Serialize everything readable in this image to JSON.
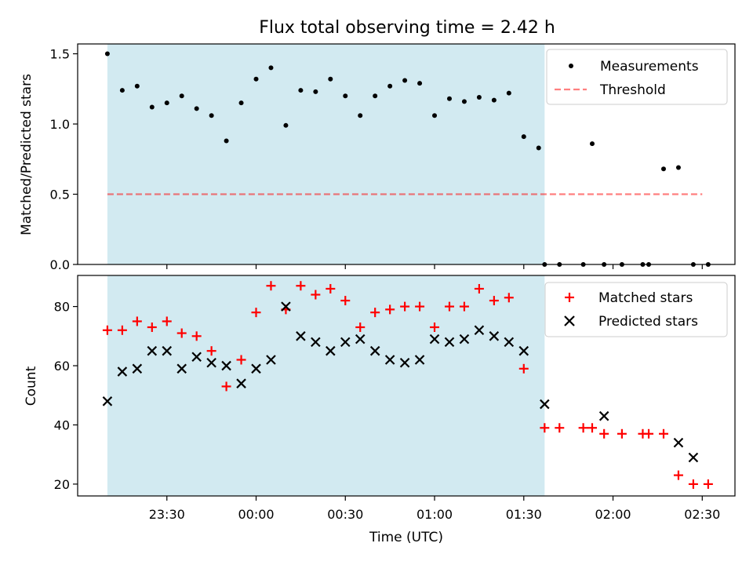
{
  "title": "Flux total observing time = 2.42 h",
  "colors": {
    "shade": "#add8e6",
    "measurement": "#000000",
    "threshold": "#ff0000",
    "matched": "#ff0000",
    "predicted": "#000000"
  },
  "chart_data": [
    {
      "type": "scatter",
      "ylabel": "Matched/Predicted stars",
      "xlabel": "",
      "x_ticks": [
        "23:30",
        "00:00",
        "00:30",
        "01:00",
        "01:30",
        "02:00",
        "02:30"
      ],
      "y_ticks": [
        "0.0",
        "0.5",
        "1.0",
        "1.5"
      ],
      "xlim": [
        "23:00",
        "02:41"
      ],
      "ylim": [
        0,
        1.57
      ],
      "grid": false,
      "legend_position": "top-right",
      "shaded_span": {
        "x": [
          "23:10",
          "01:37"
        ],
        "color": "#add8e6"
      },
      "series": [
        {
          "name": "Measurements",
          "marker": "dot",
          "x": [
            "23:10",
            "23:15",
            "23:20",
            "23:25",
            "23:30",
            "23:35",
            "23:40",
            "23:45",
            "23:50",
            "23:55",
            "00:00",
            "00:05",
            "00:10",
            "00:15",
            "00:20",
            "00:25",
            "00:30",
            "00:35",
            "00:40",
            "00:45",
            "00:50",
            "00:55",
            "01:00",
            "01:05",
            "01:10",
            "01:15",
            "01:20",
            "01:25",
            "01:30",
            "01:35",
            "01:37",
            "01:42",
            "01:50",
            "01:53",
            "01:57",
            "02:03",
            "02:10",
            "02:12",
            "02:17",
            "02:22",
            "02:27",
            "02:32"
          ],
          "y": [
            1.5,
            1.24,
            1.27,
            1.12,
            1.15,
            1.2,
            1.11,
            1.06,
            0.88,
            1.15,
            1.32,
            1.4,
            0.99,
            1.24,
            1.23,
            1.32,
            1.2,
            1.06,
            1.2,
            1.27,
            1.31,
            1.29,
            1.06,
            1.18,
            1.16,
            1.19,
            1.17,
            1.22,
            0.91,
            0.83,
            0.0,
            0.0,
            0.0,
            0.86,
            0.0,
            0.0,
            0.0,
            0.0,
            0.68,
            0.69,
            0.0,
            0.0
          ]
        },
        {
          "name": "Threshold",
          "style": "dashed",
          "x": [
            "23:10",
            "02:30"
          ],
          "y": [
            0.5,
            0.5
          ]
        }
      ]
    },
    {
      "type": "scatter",
      "ylabel": "Count",
      "xlabel": "Time (UTC)",
      "x_ticks": [
        "23:30",
        "00:00",
        "00:30",
        "01:00",
        "01:30",
        "02:00",
        "02:30"
      ],
      "y_ticks": [
        "20",
        "40",
        "60",
        "80"
      ],
      "xlim": [
        "23:00",
        "02:41"
      ],
      "ylim": [
        16,
        90.5
      ],
      "grid": false,
      "legend_position": "top-right",
      "shaded_span": {
        "x": [
          "23:10",
          "01:37"
        ],
        "color": "#add8e6"
      },
      "series": [
        {
          "name": "Matched stars",
          "marker": "plus",
          "x": [
            "23:10",
            "23:15",
            "23:20",
            "23:25",
            "23:30",
            "23:35",
            "23:40",
            "23:45",
            "23:50",
            "23:55",
            "00:00",
            "00:05",
            "00:10",
            "00:15",
            "00:20",
            "00:25",
            "00:30",
            "00:35",
            "00:40",
            "00:45",
            "00:50",
            "00:55",
            "01:00",
            "01:05",
            "01:10",
            "01:15",
            "01:20",
            "01:25",
            "01:30",
            "01:37",
            "01:42",
            "01:50",
            "01:53",
            "01:57",
            "02:03",
            "02:10",
            "02:12",
            "02:17",
            "02:22",
            "02:27",
            "02:32"
          ],
          "y": [
            72,
            72,
            75,
            73,
            75,
            71,
            70,
            65,
            53,
            62,
            78,
            87,
            79,
            87,
            84,
            86,
            82,
            73,
            78,
            79,
            80,
            80,
            73,
            80,
            80,
            86,
            82,
            83,
            59,
            39,
            39,
            39,
            39,
            37,
            37,
            37,
            37,
            37,
            23,
            20,
            20
          ]
        },
        {
          "name": "Predicted stars",
          "marker": "x",
          "x": [
            "23:10",
            "23:15",
            "23:20",
            "23:25",
            "23:30",
            "23:35",
            "23:40",
            "23:45",
            "23:50",
            "23:55",
            "00:00",
            "00:05",
            "00:10",
            "00:15",
            "00:20",
            "00:25",
            "00:30",
            "00:35",
            "00:40",
            "00:45",
            "00:50",
            "00:55",
            "01:00",
            "01:05",
            "01:10",
            "01:15",
            "01:20",
            "01:25",
            "01:30",
            "01:37",
            "01:57",
            "02:22",
            "02:27"
          ],
          "y": [
            48,
            58,
            59,
            65,
            65,
            59,
            63,
            61,
            60,
            54,
            59,
            62,
            80,
            70,
            68,
            65,
            68,
            69,
            65,
            62,
            61,
            62,
            69,
            68,
            69,
            72,
            70,
            68,
            65,
            47,
            43,
            34,
            29
          ]
        }
      ]
    }
  ]
}
